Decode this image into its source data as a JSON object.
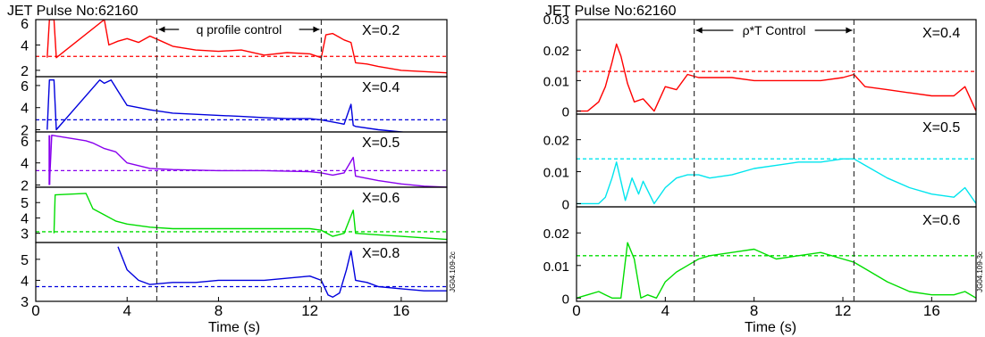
{
  "chart_data": [
    {
      "type": "line",
      "title": "JET Pulse No:62160",
      "xlabel": "Time (s)",
      "xlim": [
        0,
        18
      ],
      "x_ticks": [
        "0",
        "4",
        "8",
        "12",
        "16"
      ],
      "annotation": "q profile control",
      "control_window": [
        5.3,
        12.5
      ],
      "side_label": "JG04.109-2c",
      "panels": [
        {
          "label": "X=0.2",
          "color": "#ff0000",
          "ylim": [
            1.5,
            6
          ],
          "y_ticks": [
            "2",
            "4",
            "6"
          ],
          "reference": 3.1,
          "x": [
            0.5,
            0.6,
            0.8,
            0.9,
            3.0,
            3.2,
            3.6,
            4.0,
            4.5,
            5.0,
            5.5,
            6.0,
            7.0,
            8.0,
            9.0,
            10.0,
            11.0,
            12.0,
            12.5,
            12.7,
            13.0,
            13.5,
            13.8,
            14.0,
            14.5,
            15.0,
            16.0,
            17.0,
            18.0
          ],
          "y": [
            3.0,
            6.0,
            6.0,
            3.0,
            6.0,
            4.0,
            4.3,
            4.5,
            4.2,
            4.7,
            4.3,
            3.9,
            3.6,
            3.5,
            3.6,
            3.2,
            3.4,
            3.3,
            3.0,
            4.8,
            4.9,
            4.4,
            4.2,
            2.6,
            2.5,
            2.3,
            2.0,
            1.9,
            1.8
          ]
        },
        {
          "label": "X=0.4",
          "color": "#0000dd",
          "ylim": [
            1.8,
            6.8
          ],
          "y_ticks": [
            "2",
            "4",
            "6"
          ],
          "reference": 2.9,
          "x": [
            0.5,
            0.6,
            0.8,
            0.9,
            2.8,
            3.0,
            3.3,
            3.6,
            4.0,
            5.0,
            6.0,
            7.0,
            8.0,
            9.0,
            10.0,
            11.0,
            12.0,
            12.5,
            13.0,
            13.5,
            13.8,
            13.9,
            14.0,
            15.0,
            16.0,
            17.0,
            18.0
          ],
          "y": [
            2.0,
            6.5,
            6.5,
            2.0,
            6.5,
            6.2,
            6.5,
            5.5,
            4.2,
            3.8,
            3.5,
            3.4,
            3.3,
            3.2,
            3.1,
            3.0,
            3.0,
            2.9,
            2.7,
            2.5,
            4.3,
            2.4,
            2.3,
            2.0,
            1.8,
            1.6,
            1.5
          ]
        },
        {
          "label": "X=0.5",
          "color": "#8800ee",
          "ylim": [
            1.8,
            6.8
          ],
          "y_ticks": [
            "2",
            "4",
            "6"
          ],
          "reference": 3.3,
          "x": [
            0.6,
            0.7,
            2.2,
            2.5,
            3.0,
            3.5,
            4.0,
            5.0,
            6.0,
            8.0,
            10.0,
            12.0,
            12.5,
            13.0,
            13.5,
            13.9,
            14.0,
            15.0,
            16.0,
            17.0,
            18.0
          ],
          "y": [
            2.0,
            6.5,
            6.0,
            5.8,
            5.3,
            5.0,
            4.0,
            3.5,
            3.4,
            3.3,
            3.3,
            3.2,
            3.1,
            2.9,
            3.1,
            4.5,
            2.8,
            2.4,
            2.1,
            1.9,
            1.8
          ],
          "x_extra": [
            0.6,
            0.6
          ],
          "y_extra": [
            2.0,
            6.5
          ]
        },
        {
          "label": "X=0.6",
          "color": "#00dd00",
          "ylim": [
            2.4,
            6.0
          ],
          "y_ticks": [
            "3",
            "4",
            "5"
          ],
          "reference": 3.1,
          "x": [
            0.8,
            0.85,
            2.2,
            2.5,
            3.0,
            3.5,
            4.0,
            5.0,
            6.0,
            7.0,
            8.0,
            10.0,
            12.0,
            12.5,
            13.0,
            13.5,
            13.9,
            14.0,
            15.0,
            16.0,
            17.0,
            18.0
          ],
          "y": [
            3.0,
            5.5,
            5.6,
            4.6,
            4.2,
            3.8,
            3.6,
            3.4,
            3.3,
            3.3,
            3.3,
            3.3,
            3.3,
            3.2,
            2.8,
            3.0,
            4.5,
            3.0,
            2.9,
            2.8,
            2.7,
            2.6
          ]
        },
        {
          "label": "X=0.8",
          "color": "#0000dd",
          "ylim": [
            3.0,
            5.8
          ],
          "y_ticks": [
            "3",
            "4",
            "5"
          ],
          "reference": 3.7,
          "x": [
            3.6,
            4.0,
            4.5,
            5.0,
            6.0,
            7.0,
            8.0,
            9.0,
            10.0,
            11.0,
            12.0,
            12.5,
            12.8,
            13.0,
            13.3,
            13.6,
            13.8,
            14.0,
            14.5,
            15.0,
            16.0,
            17.0,
            18.0
          ],
          "y": [
            5.6,
            4.5,
            4.0,
            3.8,
            3.9,
            3.9,
            4.0,
            4.0,
            4.0,
            4.1,
            4.2,
            4.0,
            3.3,
            3.2,
            3.4,
            4.5,
            5.4,
            4.0,
            3.9,
            3.7,
            3.6,
            3.5,
            3.5
          ]
        }
      ]
    },
    {
      "type": "line",
      "title": "JET Pulse No:62160",
      "xlabel": "Time (s)",
      "xlim": [
        0,
        18
      ],
      "x_ticks": [
        "0",
        "4",
        "8",
        "12",
        "16"
      ],
      "top_y_ticks": [
        "0.03"
      ],
      "annotation": "ρ*T Control",
      "control_window": [
        5.3,
        12.5
      ],
      "side_label": "JG04.109-3c",
      "panels": [
        {
          "label": "X=0.4",
          "color": "#ff0000",
          "ylim": [
            -0.001,
            0.03
          ],
          "y_ticks": [
            "0.02",
            "0.01",
            "0"
          ],
          "reference": 0.013,
          "x": [
            0.0,
            0.5,
            1.0,
            1.3,
            1.6,
            1.8,
            2.0,
            2.3,
            2.6,
            3.0,
            3.5,
            4.0,
            4.5,
            5.0,
            5.5,
            6.0,
            7.0,
            8.0,
            9.0,
            10.0,
            11.0,
            12.0,
            12.5,
            13.0,
            14.0,
            15.0,
            16.0,
            17.0,
            17.5,
            18.0
          ],
          "y": [
            0.0,
            0.0,
            0.003,
            0.008,
            0.016,
            0.022,
            0.018,
            0.009,
            0.003,
            0.004,
            0.0,
            0.008,
            0.007,
            0.012,
            0.011,
            0.011,
            0.011,
            0.01,
            0.01,
            0.01,
            0.01,
            0.011,
            0.012,
            0.008,
            0.007,
            0.006,
            0.005,
            0.005,
            0.008,
            0.0
          ]
        },
        {
          "label": "X=0.5",
          "color": "#00e5ee",
          "ylim": [
            -0.001,
            0.028
          ],
          "y_ticks": [
            "0.02",
            "0.01",
            "0"
          ],
          "reference": 0.014,
          "x": [
            0.0,
            0.5,
            1.0,
            1.3,
            1.6,
            1.8,
            2.0,
            2.2,
            2.5,
            2.8,
            3.0,
            3.5,
            4.0,
            4.5,
            5.0,
            5.5,
            6.0,
            7.0,
            8.0,
            9.0,
            10.0,
            11.0,
            12.0,
            12.5,
            13.0,
            14.0,
            15.0,
            16.0,
            17.0,
            17.5,
            18.0
          ],
          "y": [
            0.0,
            0.0,
            0.0,
            0.002,
            0.008,
            0.013,
            0.007,
            0.001,
            0.008,
            0.003,
            0.007,
            0.0,
            0.005,
            0.008,
            0.009,
            0.009,
            0.008,
            0.009,
            0.011,
            0.012,
            0.013,
            0.013,
            0.014,
            0.014,
            0.012,
            0.008,
            0.005,
            0.003,
            0.002,
            0.005,
            0.0
          ]
        },
        {
          "label": "X=0.6",
          "color": "#00dd00",
          "ylim": [
            -0.001,
            0.028
          ],
          "y_ticks": [
            "0.02",
            "0.01",
            "0"
          ],
          "reference": 0.013,
          "x": [
            0.0,
            0.5,
            1.0,
            1.3,
            1.6,
            2.0,
            2.3,
            2.6,
            2.9,
            3.2,
            3.6,
            4.0,
            4.5,
            5.0,
            5.5,
            6.0,
            7.0,
            8.0,
            9.0,
            10.0,
            11.0,
            12.0,
            12.5,
            13.0,
            14.0,
            15.0,
            16.0,
            17.0,
            17.5,
            18.0
          ],
          "y": [
            0.0,
            0.001,
            0.002,
            0.001,
            0.0,
            0.0,
            0.017,
            0.012,
            0.0,
            0.001,
            0.0,
            0.005,
            0.008,
            0.01,
            0.012,
            0.013,
            0.014,
            0.015,
            0.012,
            0.013,
            0.014,
            0.012,
            0.011,
            0.009,
            0.005,
            0.002,
            0.001,
            0.001,
            0.002,
            0.0
          ]
        }
      ]
    }
  ]
}
